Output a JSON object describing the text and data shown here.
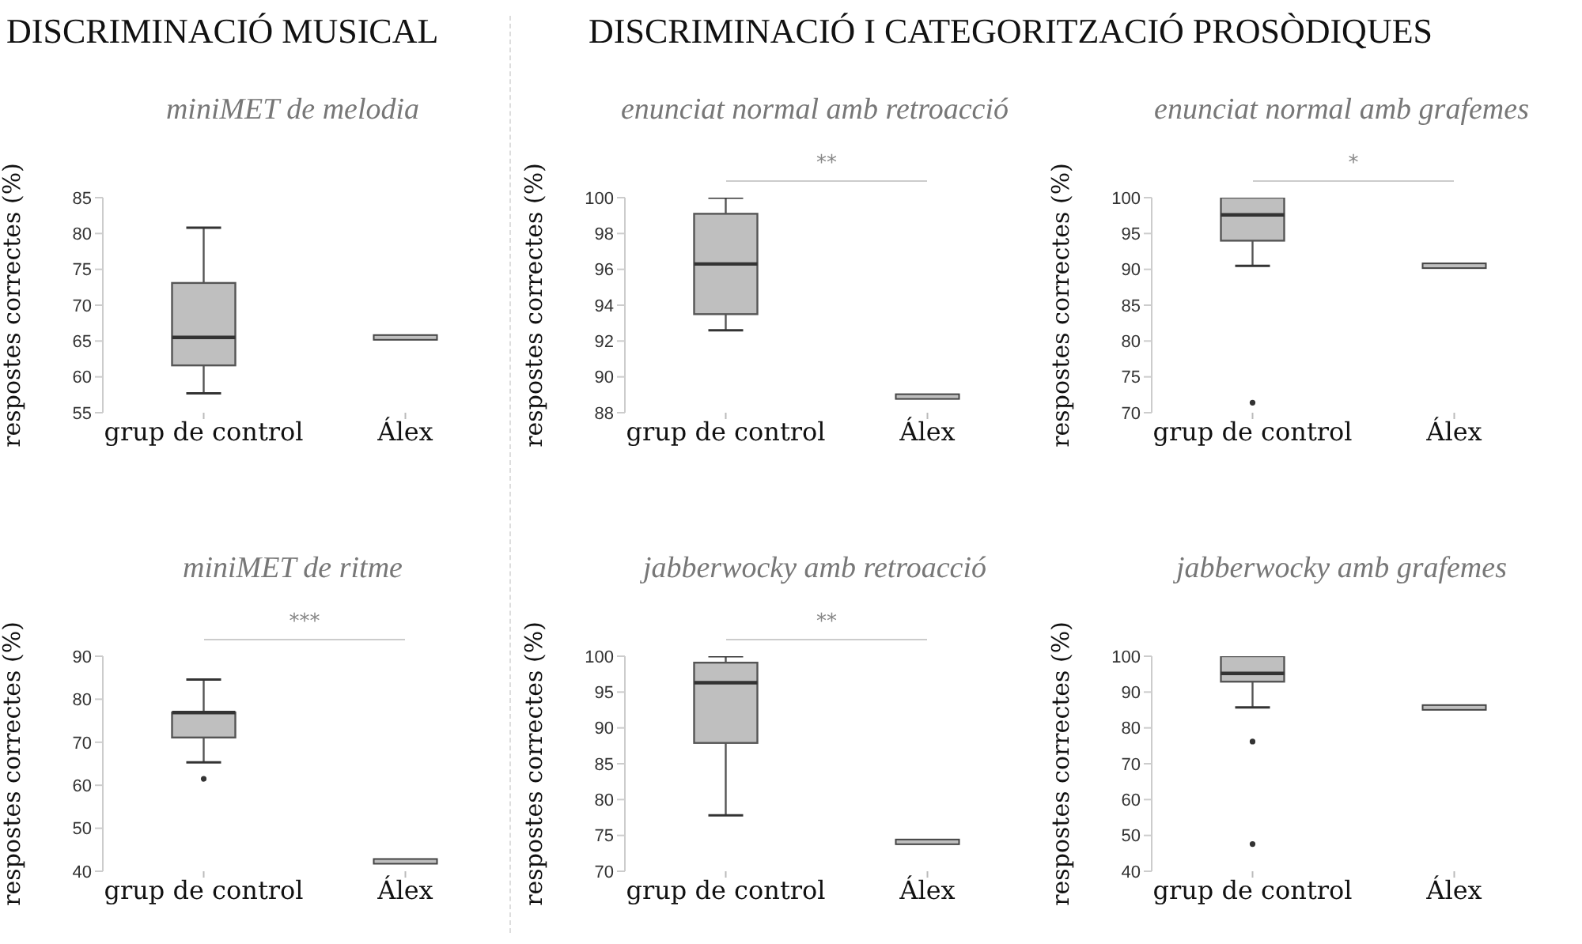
{
  "chart_data": [
    {
      "type": "box",
      "subtitle": "DISCRIMINACIÓ MUSICAL",
      "title": "miniMET de melodia",
      "ylabel": "respostes correctes (%)",
      "categories": [
        "grup de control",
        "Álex"
      ],
      "series": [
        {
          "color": "#bfbfbf",
          "boxes": [
            {
              "low": 57.7,
              "q1": 61.6,
              "median": 65.5,
              "q3": 73.1,
              "high": 80.8
            },
            {
              "low": 65.5,
              "q1": 65.5,
              "median": 65.5,
              "q3": 65.5,
              "high": 65.5
            }
          ]
        }
      ],
      "ylim": [
        55,
        85
      ],
      "yticks": [
        55,
        60,
        65,
        70,
        75,
        80,
        85
      ]
    },
    {
      "type": "box",
      "subtitle": "DISCRIMINACIÓ I CATEGORITZACIÓ PROSÒDIQUES",
      "title": "enunciat normal amb retroacció",
      "ylabel": "respostes correctes (%)",
      "categories": [
        "grup de control",
        "Álex"
      ],
      "series": [
        {
          "color": "#bfbfbf",
          "boxes": [
            {
              "low": 92.6,
              "q1": 93.5,
              "median": 96.3,
              "q3": 99.1,
              "high": 100
            },
            {
              "low": 88.9,
              "q1": 88.9,
              "median": 88.9,
              "q3": 88.9,
              "high": 88.9
            }
          ]
        }
      ],
      "ylim": [
        88,
        100
      ],
      "yticks": [
        88,
        90,
        92,
        94,
        96,
        98,
        100
      ],
      "annotations": [
        "**"
      ]
    },
    {
      "type": "box",
      "title": "enunciat normal amb grafemes",
      "ylabel": "respostes correctes (%)",
      "categories": [
        "grup de control",
        "Álex"
      ],
      "series": [
        {
          "color": "#bfbfbf",
          "boxes": [
            {
              "low": 90.5,
              "q1": 94,
              "median": 97.6,
              "q3": 100,
              "high": 100,
              "outliers": [
                71.4
              ]
            },
            {
              "low": 90.5,
              "q1": 90.5,
              "median": 90.5,
              "q3": 90.5,
              "high": 90.5
            }
          ]
        }
      ],
      "ylim": [
        70,
        100
      ],
      "yticks": [
        70,
        75,
        80,
        85,
        90,
        95,
        100
      ],
      "annotations": [
        "*"
      ]
    },
    {
      "type": "box",
      "title": "miniMET de ritme",
      "ylabel": "respostes correctes (%)",
      "categories": [
        "grup de control",
        "Álex"
      ],
      "series": [
        {
          "color": "#bfbfbf",
          "boxes": [
            {
              "low": 65.3,
              "q1": 71.1,
              "median": 76.9,
              "q3": 76.9,
              "high": 84.6,
              "outliers": [
                61.5
              ]
            },
            {
              "low": 42.3,
              "q1": 42.3,
              "median": 42.3,
              "q3": 42.3,
              "high": 42.3
            }
          ]
        }
      ],
      "ylim": [
        40,
        90
      ],
      "yticks": [
        40,
        50,
        60,
        70,
        80,
        90
      ],
      "annotations": [
        "***"
      ]
    },
    {
      "type": "box",
      "title": "jabberwocky amb retroacció",
      "ylabel": "respostes correctes (%)",
      "categories": [
        "grup de control",
        "Álex"
      ],
      "series": [
        {
          "color": "#bfbfbf",
          "boxes": [
            {
              "low": 77.8,
              "q1": 87.9,
              "median": 96.3,
              "q3": 99.1,
              "high": 100
            },
            {
              "low": 74.1,
              "q1": 74.1,
              "median": 74.1,
              "q3": 74.1,
              "high": 74.1
            }
          ]
        }
      ],
      "ylim": [
        70,
        100
      ],
      "yticks": [
        70,
        75,
        80,
        85,
        90,
        95,
        100
      ],
      "annotations": [
        "**"
      ]
    },
    {
      "type": "box",
      "title": "jabberwocky amb grafemes",
      "ylabel": "respostes correctes (%)",
      "categories": [
        "grup de control",
        "Álex"
      ],
      "series": [
        {
          "color": "#bfbfbf",
          "boxes": [
            {
              "low": 85.7,
              "q1": 92.9,
              "median": 95.2,
              "q3": 100,
              "high": 100,
              "outliers": [
                76.2,
                47.6
              ]
            },
            {
              "low": 85.7,
              "q1": 85.7,
              "median": 85.7,
              "q3": 85.7,
              "high": 85.7
            }
          ]
        }
      ],
      "ylim": [
        40,
        100
      ],
      "yticks": [
        40,
        50,
        60,
        70,
        80,
        90,
        100
      ]
    }
  ]
}
